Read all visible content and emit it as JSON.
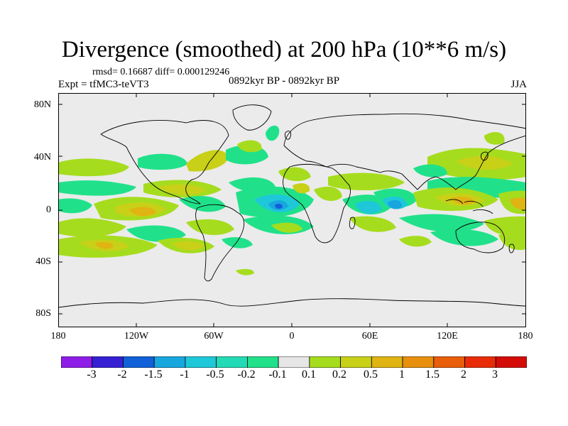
{
  "title": "Divergence (smoothed) at 200 hPa (10**6 m/s)",
  "stats_line": "rmsd= 0.16687 diff= 0.000129246",
  "experiment": "Expt = tfMC3-teVT3",
  "period": "0892kyr BP - 0892kyr BP",
  "season": "JJA",
  "map": {
    "lat_ticks": [
      "80N",
      "40N",
      "0",
      "40S",
      "80S"
    ],
    "lon_ticks": [
      "180",
      "120W",
      "60W",
      "0",
      "60E",
      "120E",
      "180"
    ],
    "background_color": "#ebebeb"
  },
  "colorbar": {
    "labels": [
      "-3",
      "-2",
      "-1.5",
      "-1",
      "-0.5",
      "-0.2",
      "-0.1",
      "0.1",
      "0.2",
      "0.5",
      "1",
      "1.5",
      "2",
      "3"
    ],
    "colors": [
      "#8f1de8",
      "#3520d4",
      "#1060d8",
      "#18a6df",
      "#1ec8d8",
      "#22dbb6",
      "#20e18a",
      "#e6e6e6",
      "#a6dc1e",
      "#c8d018",
      "#e0b412",
      "#e8900e",
      "#e85e0a",
      "#e82c08",
      "#d40c08"
    ]
  }
}
